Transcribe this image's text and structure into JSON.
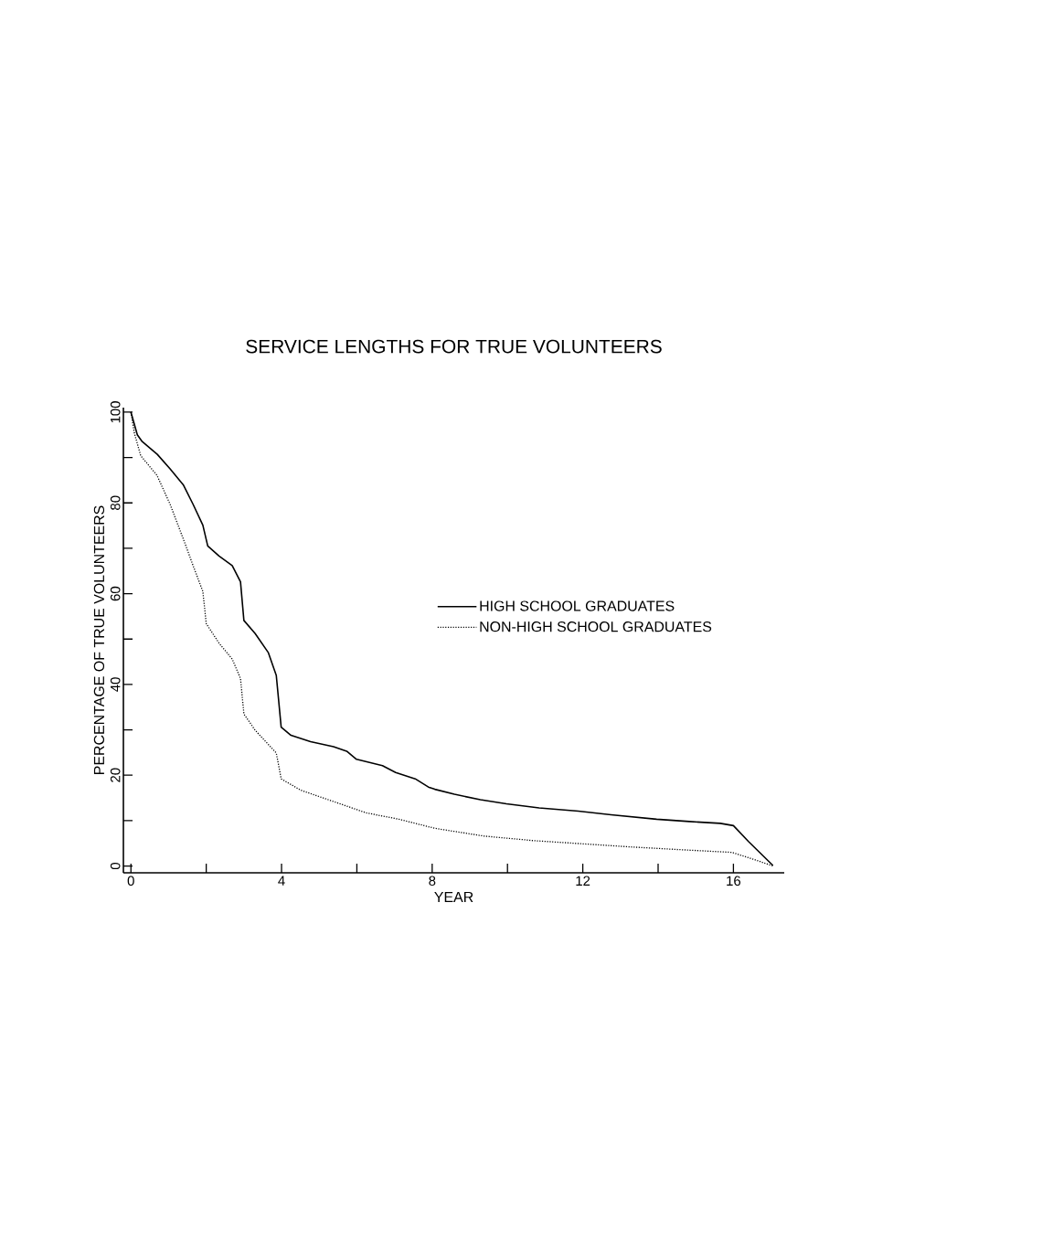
{
  "chart_data": {
    "type": "line",
    "title": "SERVICE LENGTHS FOR TRUE VOLUNTEERS",
    "xlabel": "YEAR",
    "ylabel": "PERCENTAGE OF TRUE VOLUNTEERS",
    "xlim": [
      -0.2,
      17.35
    ],
    "ylim": [
      -1.5,
      101
    ],
    "xticks": [
      0,
      {
        "value": 2,
        "label": null
      },
      4,
      {
        "value": 6,
        "label": null
      },
      8,
      {
        "value": 10,
        "label": null
      },
      12,
      {
        "value": 14,
        "label": null
      },
      16
    ],
    "yticks": [
      0,
      {
        "value": 10,
        "label": null
      },
      20,
      {
        "value": 30,
        "label": null
      },
      40,
      {
        "value": 50,
        "label": null
      },
      60,
      {
        "value": 70,
        "label": null
      },
      80,
      {
        "value": 90,
        "label": null
      },
      100
    ],
    "grid": false,
    "legend": "right",
    "marker": "none",
    "series": [
      {
        "name": "HIGH SCHOOL GRADUATES",
        "color": "#000000",
        "line_style": "solid",
        "x": [
          0,
          0.17,
          0.3,
          0.7,
          1.04,
          1.39,
          1.65,
          1.91,
          2.04,
          2.34,
          2.69,
          2.91,
          3.0,
          3.3,
          3.65,
          3.86,
          3.99,
          4.25,
          4.77,
          5.38,
          5.73,
          5.99,
          6.68,
          7.03,
          7.55,
          7.9,
          8.07,
          8.59,
          9.28,
          9.97,
          10.84,
          11.88,
          12.75,
          13.96,
          14.83,
          15.65,
          16.0,
          16.4,
          17.05
        ],
        "values": [
          100,
          95,
          93.5,
          90.7,
          87.5,
          84,
          79.7,
          75.1,
          70.5,
          68.3,
          66.2,
          62.6,
          54.1,
          51.2,
          47,
          42,
          30.6,
          28.8,
          27.4,
          26.3,
          25.3,
          23.5,
          22.1,
          20.6,
          19.2,
          17.4,
          16.9,
          15.8,
          14.6,
          13.7,
          12.8,
          12.1,
          11.3,
          10.3,
          9.8,
          9.4,
          8.9,
          5.4,
          0.1
        ]
      },
      {
        "name": "NON-HIGH SCHOOL GRADUATES",
        "color": "#000000",
        "line_style": "dotted",
        "x": [
          0,
          0.09,
          0.26,
          0.69,
          1.04,
          1.43,
          1.65,
          1.91,
          2.0,
          2.34,
          2.69,
          2.91,
          3.0,
          3.3,
          3.86,
          3.99,
          4.51,
          5.38,
          6.25,
          7.12,
          8.07,
          9.37,
          10.67,
          11.97,
          13.27,
          14.57,
          15.96,
          16.56,
          17.05
        ],
        "values": [
          100,
          95.4,
          90.4,
          86.1,
          79.7,
          71.2,
          66.2,
          60.5,
          53.4,
          49.1,
          45.6,
          41.3,
          33.5,
          29.9,
          24.9,
          19.2,
          16.7,
          14.2,
          11.7,
          10.3,
          8.3,
          6.6,
          5.6,
          4.9,
          4.2,
          3.6,
          3.0,
          1.4,
          0
        ]
      }
    ]
  }
}
